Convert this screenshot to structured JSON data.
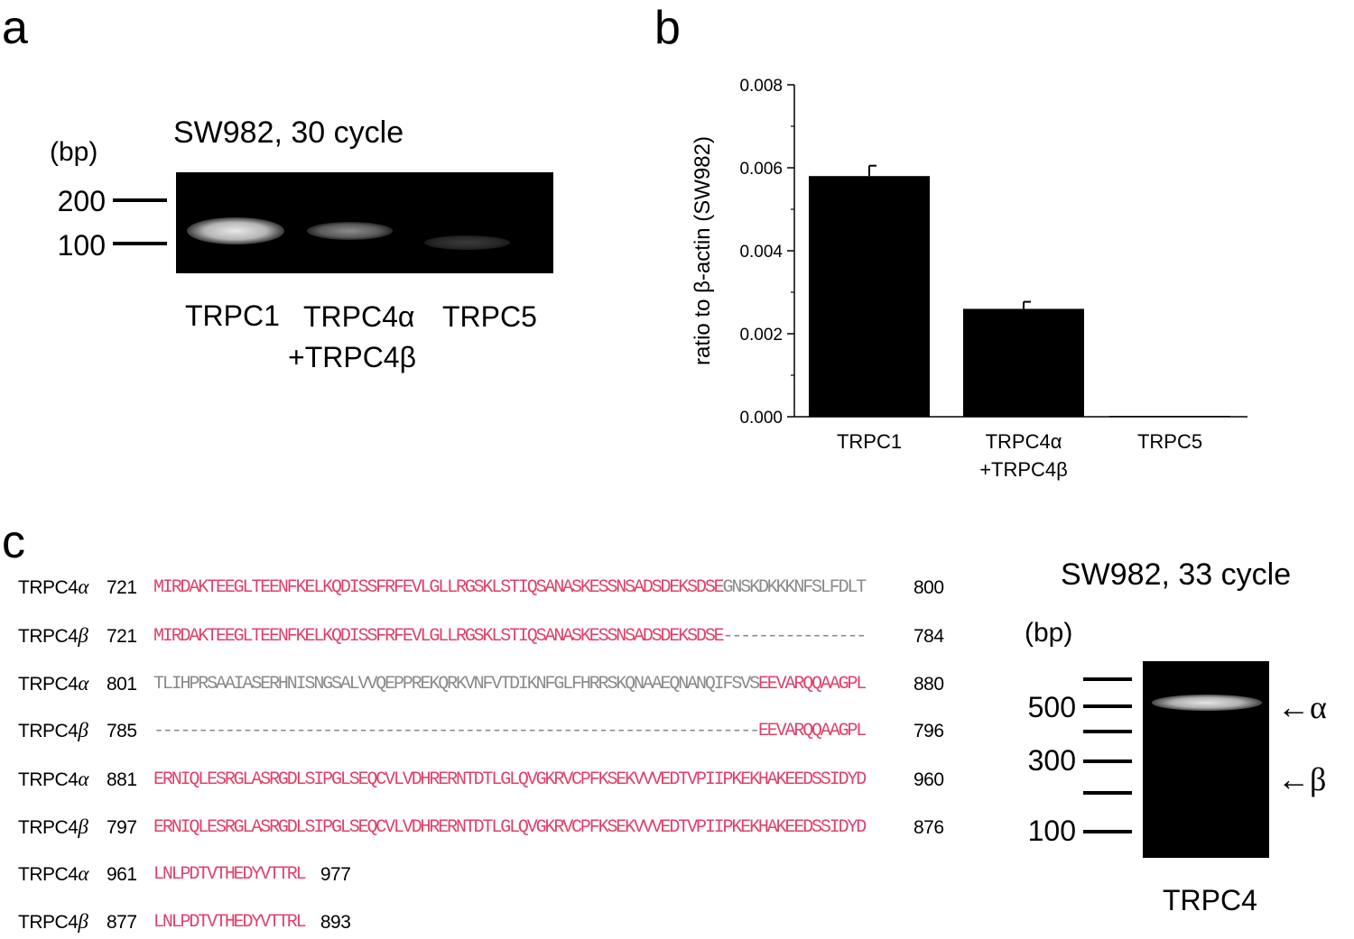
{
  "panel_a": {
    "letter": "a",
    "title": "SW982, 30 cycle",
    "unit": "(bp)",
    "markers": [
      "200",
      "100"
    ],
    "lanes": [
      "TRPC1",
      "TRPC4α",
      "+TRPC4β",
      "TRPC5"
    ]
  },
  "panel_b": {
    "letter": "b"
  },
  "chart_data": {
    "type": "bar",
    "categories": [
      "TRPC1",
      "TRPC4α\n+TRPC4β",
      "TRPC5"
    ],
    "category_lines": [
      [
        "TRPC1"
      ],
      [
        "TRPC4α",
        "+TRPC4β"
      ],
      [
        "TRPC5"
      ]
    ],
    "values": [
      0.0058,
      0.0026,
      2e-05
    ],
    "errors": [
      0.00025,
      0.00017,
      0.0
    ],
    "ylabel": "ratio to β-actin (SW982)",
    "ylim": [
      0,
      0.008
    ],
    "yticks": [
      "0.000",
      "0.002",
      "0.004",
      "0.006",
      "0.008"
    ],
    "colors": {
      "bar": "#000000"
    }
  },
  "panel_c": {
    "letter": "c",
    "rows": [
      {
        "name": "TRPC4",
        "iso": "α",
        "start": "721",
        "end": "800",
        "segments": [
          {
            "text": "MIRDAKTEEGLTEENFKELKQDISSFRFEVLGLLRGSKLSTIQSANASKESSNSADSDEKSDSE",
            "color": "pink"
          },
          {
            "text": "GNSKDKKKNFSLFDLT",
            "color": "gray"
          }
        ]
      },
      {
        "name": "TRPC4",
        "iso": "β",
        "start": "721",
        "end": "784",
        "segments": [
          {
            "text": "MIRDAKTEEGLTEENFKELKQDISSFRFEVLGLLRGSKLSTIQSANASKESSNSADSDEKSDSE",
            "color": "pink"
          },
          {
            "text": "----------------",
            "color": "gray"
          }
        ]
      },
      {
        "name": "TRPC4",
        "iso": "α",
        "start": "801",
        "end": "880",
        "segments": [
          {
            "text": "TLIHPRSAAIASERHNISNGSALVVQEPPREKQRKVNFVTDIKNFGLFHRRSKQNAAEQNANQIFSVS",
            "color": "gray"
          },
          {
            "text": "EEVARQQAAGPL",
            "color": "pink"
          }
        ]
      },
      {
        "name": "TRPC4",
        "iso": "β",
        "start": "785",
        "end": "796",
        "segments": [
          {
            "text": "--------------------------------------------------------------------",
            "color": "gray"
          },
          {
            "text": "EEVARQQAAGPL",
            "color": "pink"
          }
        ]
      },
      {
        "name": "TRPC4",
        "iso": "α",
        "start": "881",
        "end": "960",
        "segments": [
          {
            "text": "ERNIQLESRGLASRGDLSIPGLSEQCVLVDHRERNTDTLGLQVGKRVCPFKSEKVVVEDTVPIIPKEKHAKEEDSSIDYD",
            "color": "pink"
          }
        ]
      },
      {
        "name": "TRPC4",
        "iso": "β",
        "start": "797",
        "end": "876",
        "segments": [
          {
            "text": "ERNIQLESRGLASRGDLSIPGLSEQCVLVDHRERNTDTLGLQVGKRVCPFKSEKVVVEDTVPIIPKEKHAKEEDSSIDYD",
            "color": "pink"
          }
        ]
      },
      {
        "name": "TRPC4",
        "iso": "α",
        "start": "961",
        "end": "977",
        "segments": [
          {
            "text": "LNLPDTVTHEDYVTTRL",
            "color": "pink"
          }
        ]
      },
      {
        "name": "TRPC4",
        "iso": "β",
        "start": "877",
        "end": "893",
        "segments": [
          {
            "text": "LNLPDTVTHEDYVTTRL",
            "color": "pink"
          }
        ]
      }
    ],
    "gel": {
      "title": "SW982, 33 cycle",
      "unit": "(bp)",
      "markers": [
        "500",
        "300",
        "100"
      ],
      "lane": "TRPC4",
      "alpha_label": "←α",
      "beta_label": "←β"
    }
  }
}
